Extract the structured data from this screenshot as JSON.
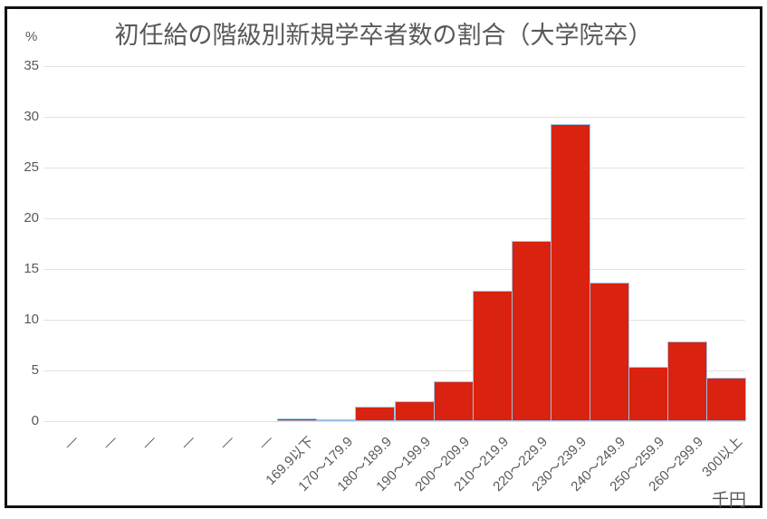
{
  "chart_data": {
    "type": "bar",
    "title": "初任給の階級別新規学卒者数の割合（大学院卒）",
    "y_axis_unit": "%",
    "x_axis_unit": "千円",
    "ylim": [
      0,
      35
    ],
    "ytick_interval": 5,
    "grid": true,
    "legend": "none",
    "bar_fill": "#d9220f",
    "bar_border": "#9dc3e6",
    "categories": [
      "—",
      "—",
      "—",
      "—",
      "—",
      "—",
      "169.9以下",
      "170～179.9",
      "180～189.9",
      "190～199.9",
      "200～209.9",
      "210～219.9",
      "220～229.9",
      "230～239.9",
      "240～249.9",
      "250～259.9",
      "260～299.9",
      "300以上"
    ],
    "values": [
      0,
      0,
      0,
      0,
      0,
      0,
      0.3,
      0.1,
      1.4,
      2.0,
      3.9,
      12.9,
      17.8,
      29.3,
      13.7,
      5.4,
      7.9,
      4.3
    ]
  }
}
